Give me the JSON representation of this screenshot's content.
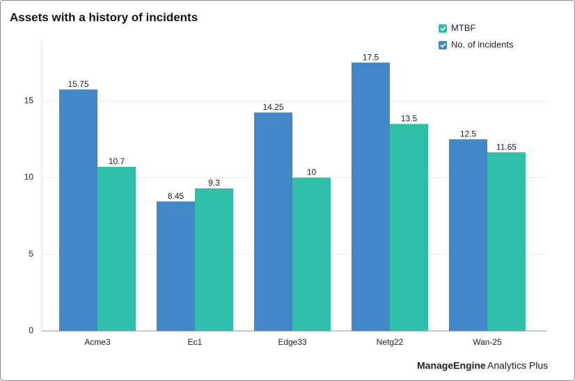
{
  "chart_data": {
    "type": "bar",
    "title": "Assets with a history of incidents",
    "categories": [
      "Acme3",
      "Ec1",
      "Edge33",
      "Netg22",
      "Wan-25"
    ],
    "series": [
      {
        "name": "No. of incidents",
        "color": "#4287c8",
        "values": [
          15.75,
          8.45,
          14.25,
          17.5,
          12.5
        ]
      },
      {
        "name": "MTBF",
        "color": "#2fbfa8",
        "values": [
          10.7,
          9.3,
          10,
          13.5,
          11.65
        ]
      }
    ],
    "ylim": [
      0,
      19
    ],
    "yticks": [
      0,
      5,
      10,
      15
    ],
    "grid": true
  },
  "brand": [
    "ManageEngine",
    "Analytics Plus"
  ]
}
